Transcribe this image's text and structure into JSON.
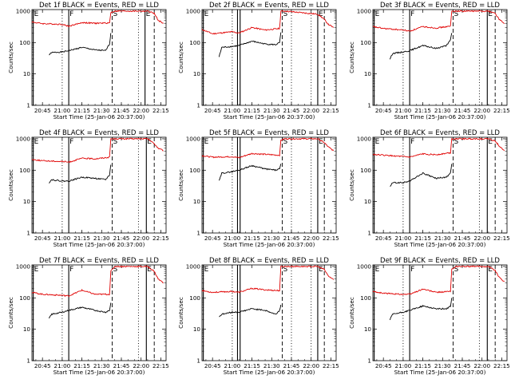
{
  "figure": {
    "x_axis_label": "Start Time (25-Jan-06 20:37:00)",
    "y_axis_label": "Counts/sec",
    "x_tick_labels": [
      "20:45",
      "21:00",
      "21:15",
      "21:30",
      "21:45",
      "22:00",
      "22:15"
    ],
    "y_tick_labels": [
      "1",
      "10",
      "100",
      "1000"
    ],
    "colors": {
      "events": "#000000",
      "lld": "#e00000",
      "axes": "#000000",
      "background": "#ffffff"
    }
  },
  "chart_data": [
    {
      "type": "line",
      "title": "Det 1f BLACK = Events, RED = LLD",
      "xlabel": "Start Time (25-Jan-06 20:37:00)",
      "ylabel": "Counts/sec",
      "yscale": "log",
      "xlim": [
        "20:37",
        "22:19"
      ],
      "ylim": [
        1,
        1000
      ],
      "grid": false,
      "series": [
        {
          "key": "events",
          "x": [
            "20:50",
            "20:52",
            "21:00",
            "21:05",
            "21:15",
            "21:25",
            "21:33",
            "21:36",
            "21:37"
          ],
          "values": [
            40,
            48,
            50,
            55,
            70,
            58,
            55,
            90,
            200
          ]
        },
        {
          "key": "lld",
          "x": [
            "20:37",
            "20:45",
            "21:00",
            "21:05",
            "21:15",
            "21:25",
            "21:36",
            "21:37",
            "21:40",
            "22:05",
            "22:10",
            "22:13",
            "22:17"
          ],
          "values": [
            450,
            400,
            380,
            330,
            430,
            410,
            420,
            900,
            1000,
            1000,
            850,
            500,
            420
          ]
        }
      ],
      "vertical_markers": [
        {
          "x": "20:38",
          "style": "solid",
          "label": "E"
        },
        {
          "x": "21:00",
          "style": "dotted",
          "label": ""
        },
        {
          "x": "21:05",
          "style": "solid",
          "label": "F"
        },
        {
          "x": "21:38",
          "style": "dashed",
          "label": "S"
        },
        {
          "x": "21:58",
          "style": "dotted",
          "label": ""
        },
        {
          "x": "22:03",
          "style": "solid",
          "label": "E"
        },
        {
          "x": "22:10",
          "style": "dashed",
          "label": ""
        }
      ]
    },
    {
      "type": "line",
      "title": "Det 2f BLACK = Events, RED = LLD",
      "xlabel": "Start Time (25-Jan-06 20:37:00)",
      "ylabel": "Counts/sec",
      "yscale": "log",
      "xlim": [
        "20:37",
        "22:19"
      ],
      "ylim": [
        1,
        1000
      ],
      "grid": false,
      "series": [
        {
          "key": "events",
          "x": [
            "20:50",
            "20:52",
            "21:00",
            "21:05",
            "21:15",
            "21:25",
            "21:33",
            "21:36",
            "21:37"
          ],
          "values": [
            35,
            70,
            75,
            80,
            110,
            90,
            85,
            100,
            210
          ]
        },
        {
          "key": "lld",
          "x": [
            "20:37",
            "20:45",
            "21:00",
            "21:05",
            "21:15",
            "21:25",
            "21:36",
            "21:37",
            "21:40",
            "22:05",
            "22:10",
            "22:13",
            "22:17"
          ],
          "values": [
            260,
            190,
            220,
            200,
            300,
            250,
            280,
            1000,
            1000,
            800,
            550,
            380,
            300
          ]
        }
      ],
      "vertical_markers": [
        {
          "x": "20:38",
          "style": "solid",
          "label": "E"
        },
        {
          "x": "21:00",
          "style": "dotted",
          "label": ""
        },
        {
          "x": "21:04",
          "style": "solid",
          "label": ""
        },
        {
          "x": "21:06",
          "style": "solid",
          "label": ""
        },
        {
          "x": "21:38",
          "style": "dashed",
          "label": "S"
        },
        {
          "x": "21:45",
          "style": "dotted",
          "label": ""
        },
        {
          "x": "22:00",
          "style": "dotted",
          "label": ""
        },
        {
          "x": "22:05",
          "style": "solid",
          "label": "E"
        },
        {
          "x": "22:10",
          "style": "dashed",
          "label": ""
        }
      ]
    },
    {
      "type": "line",
      "title": "Det 3f BLACK = Events, RED = LLD",
      "xlabel": "Start Time (25-Jan-06 20:37:00)",
      "ylabel": "Counts/sec",
      "yscale": "log",
      "xlim": [
        "20:37",
        "22:19"
      ],
      "ylim": [
        1,
        1000
      ],
      "grid": false,
      "series": [
        {
          "key": "events",
          "x": [
            "20:50",
            "20:52",
            "21:00",
            "21:05",
            "21:15",
            "21:25",
            "21:33",
            "21:36",
            "21:37"
          ],
          "values": [
            30,
            45,
            50,
            55,
            80,
            65,
            80,
            120,
            200
          ]
        },
        {
          "key": "lld",
          "x": [
            "20:37",
            "20:45",
            "21:00",
            "21:05",
            "21:15",
            "21:25",
            "21:36",
            "21:37",
            "21:40",
            "22:05",
            "22:10",
            "22:13",
            "22:17"
          ],
          "values": [
            320,
            280,
            250,
            230,
            320,
            290,
            330,
            1000,
            1000,
            1000,
            850,
            550,
            400
          ]
        }
      ],
      "vertical_markers": [
        {
          "x": "20:38",
          "style": "solid",
          "label": "E"
        },
        {
          "x": "21:00",
          "style": "dotted",
          "label": ""
        },
        {
          "x": "21:05",
          "style": "solid",
          "label": "F"
        },
        {
          "x": "21:38",
          "style": "dashed",
          "label": "S"
        },
        {
          "x": "21:58",
          "style": "dotted",
          "label": ""
        },
        {
          "x": "22:04",
          "style": "solid",
          "label": "E"
        },
        {
          "x": "22:10",
          "style": "dashed",
          "label": ""
        }
      ]
    },
    {
      "type": "line",
      "title": "Det 4f BLACK = Events, RED = LLD",
      "xlabel": "Start Time (25-Jan-06 20:37:00)",
      "ylabel": "Counts/sec",
      "yscale": "log",
      "xlim": [
        "20:37",
        "22:19"
      ],
      "ylim": [
        1,
        1000
      ],
      "grid": false,
      "series": [
        {
          "key": "events",
          "x": [
            "20:50",
            "20:52",
            "21:00",
            "21:05",
            "21:15",
            "21:25",
            "21:33",
            "21:36",
            "21:37"
          ],
          "values": [
            40,
            50,
            45,
            45,
            60,
            55,
            50,
            70,
            150
          ]
        },
        {
          "key": "lld",
          "x": [
            "20:37",
            "20:45",
            "21:00",
            "21:05",
            "21:15",
            "21:25",
            "21:36",
            "21:37",
            "21:40",
            "22:05",
            "22:10",
            "22:13",
            "22:17"
          ],
          "values": [
            220,
            200,
            190,
            180,
            240,
            230,
            260,
            1000,
            1000,
            1000,
            700,
            500,
            420
          ]
        }
      ],
      "vertical_markers": [
        {
          "x": "20:38",
          "style": "solid",
          "label": "E"
        },
        {
          "x": "21:00",
          "style": "dotted",
          "label": ""
        },
        {
          "x": "21:05",
          "style": "solid",
          "label": "F"
        },
        {
          "x": "21:38",
          "style": "dashed",
          "label": "S"
        },
        {
          "x": "21:58",
          "style": "dotted",
          "label": ""
        },
        {
          "x": "22:04",
          "style": "solid",
          "label": "E"
        },
        {
          "x": "22:10",
          "style": "dashed",
          "label": ""
        }
      ]
    },
    {
      "type": "line",
      "title": "Det 5f BLACK = Events, RED = LLD",
      "xlabel": "Start Time (25-Jan-06 20:37:00)",
      "ylabel": "Counts/sec",
      "yscale": "log",
      "xlim": [
        "20:37",
        "22:19"
      ],
      "ylim": [
        1,
        1000
      ],
      "grid": false,
      "series": [
        {
          "key": "events",
          "x": [
            "20:50",
            "20:52",
            "21:00",
            "21:05",
            "21:15",
            "21:25",
            "21:33",
            "21:36",
            "21:37"
          ],
          "values": [
            45,
            80,
            90,
            100,
            140,
            110,
            100,
            110,
            160
          ]
        },
        {
          "key": "lld",
          "x": [
            "20:37",
            "20:45",
            "21:00",
            "21:05",
            "21:15",
            "21:25",
            "21:36",
            "21:37",
            "21:40",
            "22:05",
            "22:10",
            "22:13",
            "22:17"
          ],
          "values": [
            290,
            260,
            270,
            250,
            340,
            320,
            300,
            900,
            1000,
            1000,
            750,
            550,
            420
          ]
        }
      ],
      "vertical_markers": [
        {
          "x": "20:38",
          "style": "solid",
          "label": "E"
        },
        {
          "x": "21:00",
          "style": "dotted",
          "label": ""
        },
        {
          "x": "21:04",
          "style": "solid",
          "label": ""
        },
        {
          "x": "21:06",
          "style": "solid",
          "label": ""
        },
        {
          "x": "21:38",
          "style": "dashed",
          "label": "S"
        },
        {
          "x": "21:45",
          "style": "dotted",
          "label": ""
        },
        {
          "x": "22:00",
          "style": "dotted",
          "label": ""
        },
        {
          "x": "22:05",
          "style": "solid",
          "label": "E"
        },
        {
          "x": "22:10",
          "style": "dashed",
          "label": ""
        }
      ]
    },
    {
      "type": "line",
      "title": "Det 6f BLACK = Events, RED = LLD",
      "xlabel": "Start Time (25-Jan-06 20:37:00)",
      "ylabel": "Counts/sec",
      "yscale": "log",
      "xlim": [
        "20:37",
        "22:19"
      ],
      "ylim": [
        1,
        1000
      ],
      "grid": false,
      "series": [
        {
          "key": "events",
          "x": [
            "20:50",
            "20:52",
            "21:00",
            "21:05",
            "21:15",
            "21:25",
            "21:33",
            "21:36",
            "21:37"
          ],
          "values": [
            30,
            40,
            40,
            45,
            80,
            55,
            60,
            80,
            160
          ]
        },
        {
          "key": "lld",
          "x": [
            "20:37",
            "20:45",
            "21:00",
            "21:05",
            "21:15",
            "21:25",
            "21:36",
            "21:37",
            "21:40",
            "22:05",
            "22:10",
            "22:13",
            "22:17"
          ],
          "values": [
            320,
            300,
            270,
            260,
            330,
            310,
            360,
            1000,
            1000,
            1000,
            850,
            600,
            420
          ]
        }
      ],
      "vertical_markers": [
        {
          "x": "20:38",
          "style": "solid",
          "label": "E"
        },
        {
          "x": "21:00",
          "style": "dotted",
          "label": ""
        },
        {
          "x": "21:05",
          "style": "solid",
          "label": "F"
        },
        {
          "x": "21:38",
          "style": "dashed",
          "label": "S"
        },
        {
          "x": "21:58",
          "style": "dotted",
          "label": ""
        },
        {
          "x": "22:04",
          "style": "solid",
          "label": "E"
        },
        {
          "x": "22:10",
          "style": "dashed",
          "label": ""
        }
      ]
    },
    {
      "type": "line",
      "title": "Det 7f BLACK = Events, RED = LLD",
      "xlabel": "Start Time (25-Jan-06 20:37:00)",
      "ylabel": "Counts/sec",
      "yscale": "log",
      "xlim": [
        "20:37",
        "22:19"
      ],
      "ylim": [
        1,
        1000
      ],
      "grid": false,
      "series": [
        {
          "key": "events",
          "x": [
            "20:50",
            "20:52",
            "21:00",
            "21:05",
            "21:15",
            "21:25",
            "21:33",
            "21:36",
            "21:37"
          ],
          "values": [
            22,
            30,
            35,
            40,
            50,
            40,
            35,
            40,
            70
          ]
        },
        {
          "key": "lld",
          "x": [
            "20:37",
            "20:45",
            "21:00",
            "21:05",
            "21:15",
            "21:25",
            "21:36",
            "21:37",
            "21:40",
            "22:05",
            "22:10",
            "22:13",
            "22:17"
          ],
          "values": [
            150,
            130,
            120,
            115,
            175,
            130,
            130,
            700,
            1000,
            1000,
            700,
            400,
            300
          ]
        }
      ],
      "vertical_markers": [
        {
          "x": "20:38",
          "style": "solid",
          "label": "E"
        },
        {
          "x": "21:00",
          "style": "dotted",
          "label": ""
        },
        {
          "x": "21:05",
          "style": "solid",
          "label": "F"
        },
        {
          "x": "21:38",
          "style": "dashed",
          "label": "S"
        },
        {
          "x": "21:58",
          "style": "dotted",
          "label": ""
        },
        {
          "x": "22:04",
          "style": "solid",
          "label": "E"
        },
        {
          "x": "22:10",
          "style": "dashed",
          "label": ""
        }
      ]
    },
    {
      "type": "line",
      "title": "Det 8f BLACK = Events, RED = LLD",
      "xlabel": "Start Time (25-Jan-06 20:37:00)",
      "ylabel": "Counts/sec",
      "yscale": "log",
      "xlim": [
        "20:37",
        "22:19"
      ],
      "ylim": [
        1,
        1000
      ],
      "grid": false,
      "series": [
        {
          "key": "events",
          "x": [
            "20:50",
            "20:52",
            "21:00",
            "21:05",
            "21:15",
            "21:25",
            "21:33",
            "21:36",
            "21:37"
          ],
          "values": [
            25,
            30,
            35,
            35,
            45,
            40,
            30,
            40,
            60
          ]
        },
        {
          "key": "lld",
          "x": [
            "20:37",
            "20:45",
            "21:00",
            "21:05",
            "21:15",
            "21:25",
            "21:36",
            "21:37",
            "21:40",
            "22:05",
            "22:10",
            "22:13",
            "22:17"
          ],
          "values": [
            170,
            150,
            160,
            150,
            200,
            180,
            170,
            1000,
            1000,
            1000,
            800,
            500,
            380
          ]
        }
      ],
      "vertical_markers": [
        {
          "x": "20:38",
          "style": "solid",
          "label": "E"
        },
        {
          "x": "21:00",
          "style": "dotted",
          "label": ""
        },
        {
          "x": "21:04",
          "style": "solid",
          "label": ""
        },
        {
          "x": "21:06",
          "style": "solid",
          "label": ""
        },
        {
          "x": "21:38",
          "style": "dashed",
          "label": "S"
        },
        {
          "x": "21:45",
          "style": "dotted",
          "label": ""
        },
        {
          "x": "22:00",
          "style": "dotted",
          "label": ""
        },
        {
          "x": "22:05",
          "style": "solid",
          "label": "E"
        },
        {
          "x": "22:10",
          "style": "dashed",
          "label": ""
        }
      ]
    },
    {
      "type": "line",
      "title": "Det 9f BLACK = Events, RED = LLD",
      "xlabel": "Start Time (25-Jan-06 20:37:00)",
      "ylabel": "Counts/sec",
      "yscale": "log",
      "xlim": [
        "20:37",
        "22:19"
      ],
      "ylim": [
        1,
        1000
      ],
      "grid": false,
      "series": [
        {
          "key": "events",
          "x": [
            "20:50",
            "20:52",
            "21:00",
            "21:05",
            "21:15",
            "21:25",
            "21:33",
            "21:36",
            "21:37"
          ],
          "values": [
            20,
            30,
            35,
            40,
            55,
            45,
            45,
            55,
            100
          ]
        },
        {
          "key": "lld",
          "x": [
            "20:37",
            "20:45",
            "21:00",
            "21:05",
            "21:15",
            "21:25",
            "21:36",
            "21:37",
            "21:40",
            "22:05",
            "22:10",
            "22:13",
            "22:17"
          ],
          "values": [
            160,
            140,
            130,
            130,
            190,
            150,
            160,
            800,
            1000,
            1000,
            750,
            450,
            330
          ]
        }
      ],
      "vertical_markers": [
        {
          "x": "20:38",
          "style": "solid",
          "label": "E"
        },
        {
          "x": "21:00",
          "style": "dotted",
          "label": ""
        },
        {
          "x": "21:05",
          "style": "solid",
          "label": "F"
        },
        {
          "x": "21:38",
          "style": "dashed",
          "label": "S"
        },
        {
          "x": "21:58",
          "style": "dotted",
          "label": ""
        },
        {
          "x": "22:04",
          "style": "solid",
          "label": "E"
        },
        {
          "x": "22:10",
          "style": "dashed",
          "label": ""
        }
      ]
    }
  ]
}
